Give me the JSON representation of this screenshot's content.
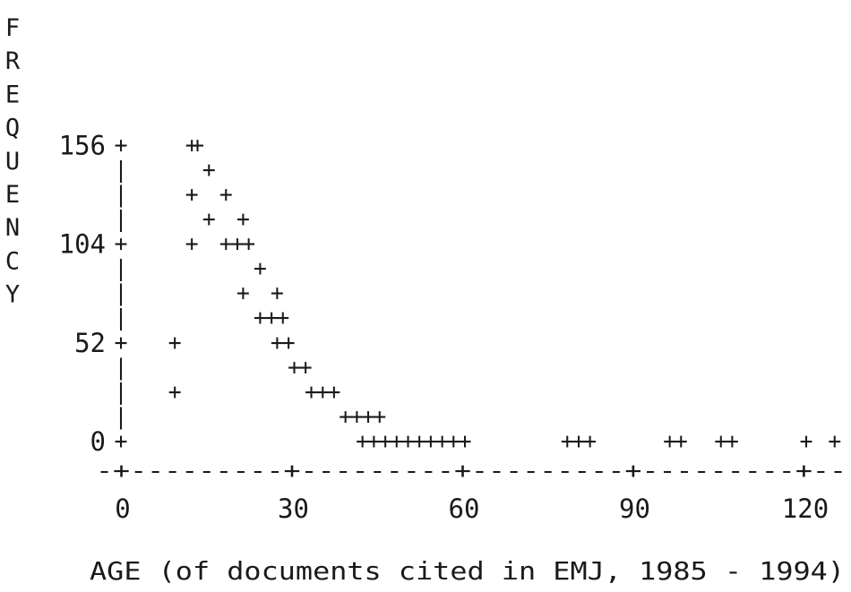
{
  "chart_data": {
    "type": "scatter",
    "title": "",
    "xlabel": "AGE (of documents cited in EMJ, 1985 - 1994)",
    "ylabel": "FREQUENCY",
    "xlim": [
      0,
      125
    ],
    "ylim": [
      0,
      156
    ],
    "x_ticks": [
      "0",
      "30",
      "60",
      "90",
      "120"
    ],
    "y_ticks": [
      "0",
      "52",
      "104",
      "156"
    ],
    "marker": "+",
    "grid": false,
    "legend": "none",
    "x_axis_art": "-+---------+---------+---------+---------+--",
    "y_axis_tick": "+",
    "y_axis_bar": "|",
    "points": [
      {
        "x": 9,
        "y": 52
      },
      {
        "x": 9,
        "y": 26
      },
      {
        "x": 12,
        "y": 156
      },
      {
        "x": 13,
        "y": 156
      },
      {
        "x": 15,
        "y": 143
      },
      {
        "x": 12,
        "y": 130
      },
      {
        "x": 18,
        "y": 130
      },
      {
        "x": 15,
        "y": 117
      },
      {
        "x": 21,
        "y": 117
      },
      {
        "x": 12,
        "y": 104
      },
      {
        "x": 18,
        "y": 104
      },
      {
        "x": 20,
        "y": 104
      },
      {
        "x": 22,
        "y": 104
      },
      {
        "x": 24,
        "y": 91
      },
      {
        "x": 21,
        "y": 78
      },
      {
        "x": 27,
        "y": 78
      },
      {
        "x": 24,
        "y": 65
      },
      {
        "x": 26,
        "y": 65
      },
      {
        "x": 28,
        "y": 65
      },
      {
        "x": 27,
        "y": 52
      },
      {
        "x": 29,
        "y": 52
      },
      {
        "x": 30,
        "y": 39
      },
      {
        "x": 32,
        "y": 39
      },
      {
        "x": 33,
        "y": 26
      },
      {
        "x": 35,
        "y": 26
      },
      {
        "x": 37,
        "y": 26
      },
      {
        "x": 39,
        "y": 13
      },
      {
        "x": 41,
        "y": 13
      },
      {
        "x": 43,
        "y": 13
      },
      {
        "x": 45,
        "y": 13
      },
      {
        "x": 42,
        "y": 0
      },
      {
        "x": 44,
        "y": 0
      },
      {
        "x": 46,
        "y": 0
      },
      {
        "x": 48,
        "y": 0
      },
      {
        "x": 50,
        "y": 0
      },
      {
        "x": 52,
        "y": 0
      },
      {
        "x": 54,
        "y": 0
      },
      {
        "x": 56,
        "y": 0
      },
      {
        "x": 58,
        "y": 0
      },
      {
        "x": 60,
        "y": 0
      },
      {
        "x": 78,
        "y": 0
      },
      {
        "x": 80,
        "y": 0
      },
      {
        "x": 82,
        "y": 0
      },
      {
        "x": 96,
        "y": 0
      },
      {
        "x": 98,
        "y": 0
      },
      {
        "x": 105,
        "y": 0
      },
      {
        "x": 107,
        "y": 0
      },
      {
        "x": 120,
        "y": 0
      },
      {
        "x": 125,
        "y": 0
      }
    ]
  }
}
